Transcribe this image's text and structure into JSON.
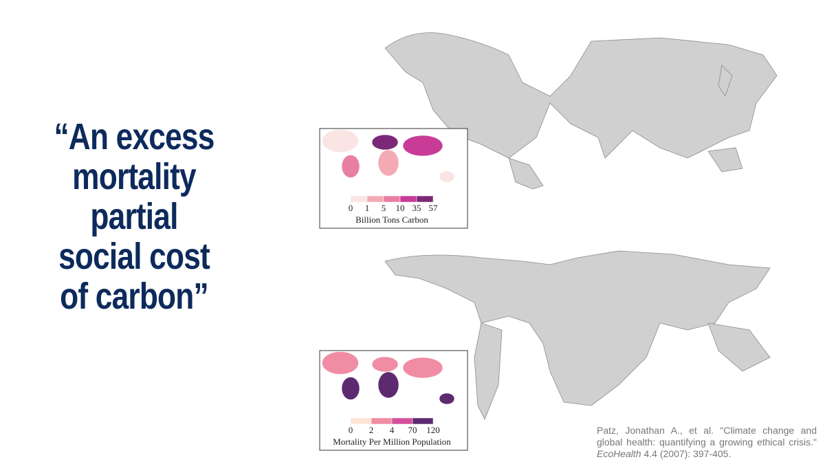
{
  "quote": {
    "lines": [
      "“An excess",
      "mortality",
      "partial",
      "social cost",
      "of carbon”"
    ]
  },
  "maps": [
    {
      "legend": {
        "ticks": [
          0,
          1,
          5,
          10,
          35,
          57
        ],
        "colors": [
          "#fbe4e4",
          "#f4aab4",
          "#e97ea3",
          "#c83c97",
          "#7a2877"
        ],
        "title": "Billion Tons Carbon"
      }
    },
    {
      "legend": {
        "ticks": [
          0,
          2,
          4,
          70,
          120
        ],
        "colors": [
          "#fde3d6",
          "#f08ca3",
          "#d4509b",
          "#5d2a70"
        ],
        "title": "Mortality Per Million Population"
      }
    }
  ],
  "citation": {
    "before": "Patz, Jonathan A., et al. \"Climate change and global health: quantifying a growing ethical crisis.\" ",
    "journal": "EcoHealth",
    "after": " 4.4 (2007): 397-405."
  }
}
